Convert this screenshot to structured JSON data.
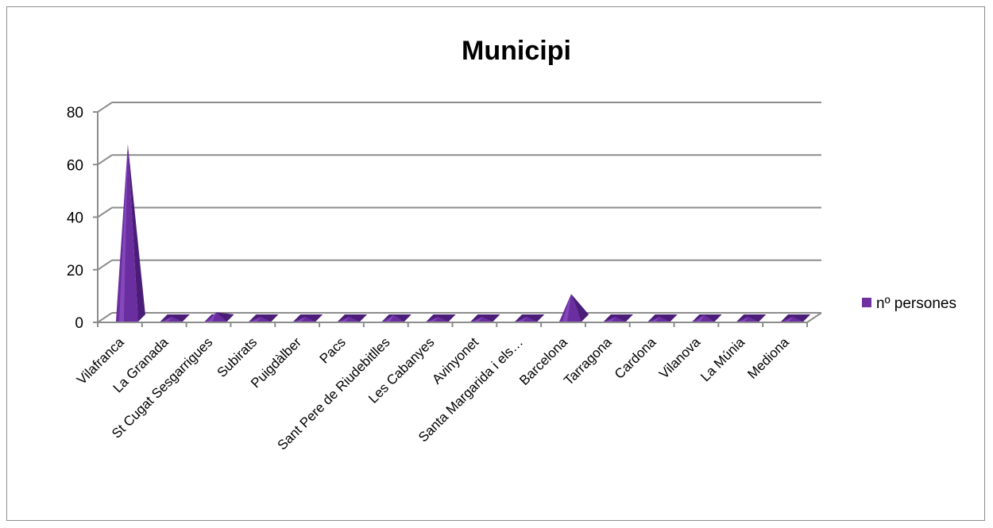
{
  "chart_data": {
    "type": "bar",
    "bar_shape": "pyramid-3d",
    "title": "Municipi",
    "categories": [
      "Vilafranca",
      "La Granada",
      "St Cugat  Sesgarrigues",
      "Subirats",
      "Puigdàlber",
      "Pacs",
      "Sant Pere de Riudebitlles",
      "Les Cabanyes",
      "Avinyonet",
      "Santa Margarida i els…",
      "Barcelona",
      "Tarragona",
      "Cardona",
      "Vilanova",
      "La Múnia",
      "Mediona"
    ],
    "series": [
      {
        "name": "nº persones",
        "values": [
          66,
          0,
          2,
          0,
          0,
          0,
          1,
          0,
          0,
          0,
          9,
          0,
          0,
          1,
          0,
          0
        ]
      }
    ],
    "ylim": [
      0,
      80
    ],
    "yticks": [
      "0",
      "20",
      "40",
      "60",
      "80"
    ],
    "grid": true,
    "legend_position": "right",
    "colors": {
      "bar_front": "#6a2ea0",
      "bar_side": "#4b1d78",
      "bar_highlight": "#9b5fd0",
      "grid": "#8c8c8c",
      "legend_swatch": "#7030a0"
    }
  }
}
